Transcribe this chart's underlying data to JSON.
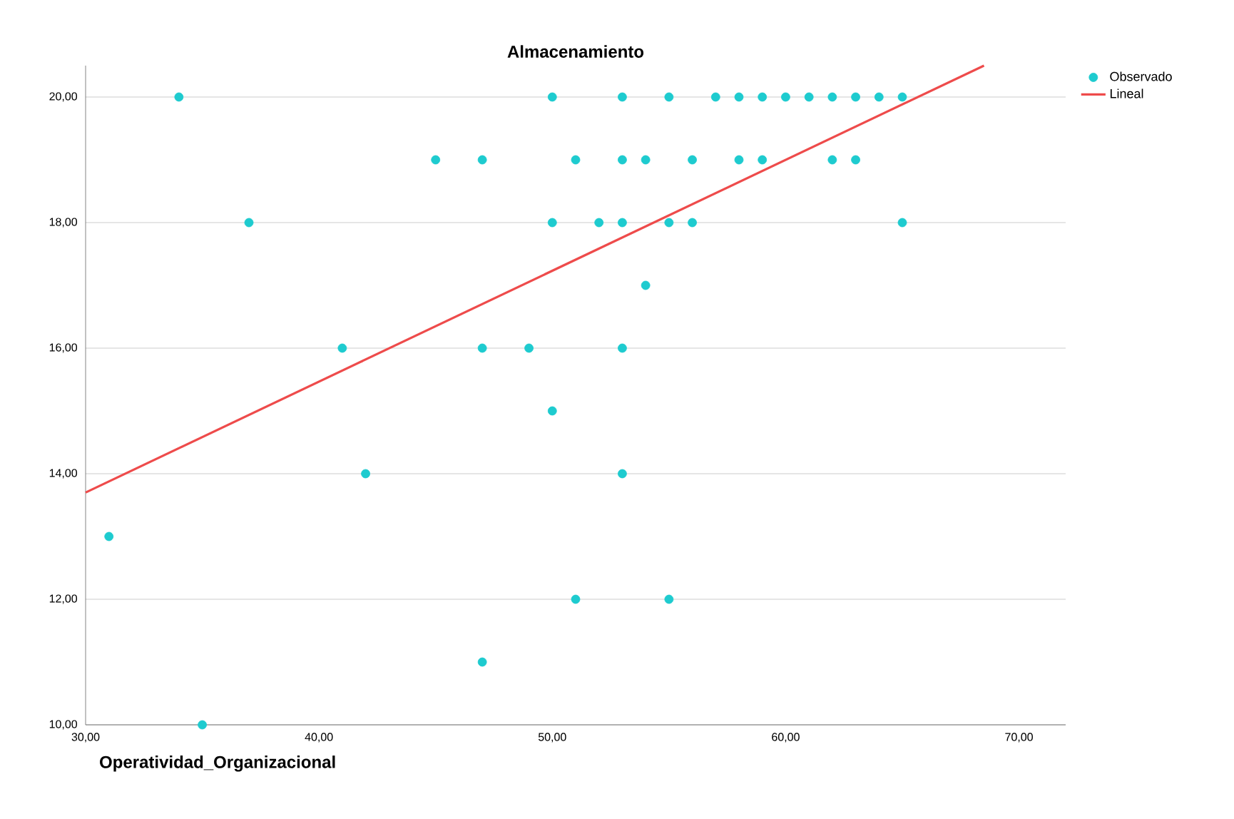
{
  "chart_data": {
    "type": "scatter",
    "title": "Almacenamiento",
    "xlabel": "Operatividad_Organizacional",
    "xlim": [
      30,
      72
    ],
    "ylim": [
      10,
      20.5
    ],
    "xticks": [
      {
        "value": 30,
        "label": "30,00"
      },
      {
        "value": 40,
        "label": "40,00"
      },
      {
        "value": 50,
        "label": "50,00"
      },
      {
        "value": 60,
        "label": "60,00"
      },
      {
        "value": 70,
        "label": "70,00"
      }
    ],
    "yticks": [
      {
        "value": 10,
        "label": "10,00"
      },
      {
        "value": 12,
        "label": "12,00"
      },
      {
        "value": 14,
        "label": "14,00"
      },
      {
        "value": 16,
        "label": "16,00"
      },
      {
        "value": 18,
        "label": "18,00"
      },
      {
        "value": 20,
        "label": "20,00"
      }
    ],
    "grid": "y",
    "legend": "top right",
    "marker": "circle",
    "series": [
      {
        "name": "Observado",
        "color": "#1ecbcf",
        "x": [
          34,
          50,
          53,
          55,
          57,
          58,
          59,
          60,
          61,
          62,
          63,
          64,
          65,
          45,
          47,
          51,
          53,
          54,
          56,
          58,
          59,
          62,
          63,
          37,
          50,
          52,
          53,
          55,
          56,
          65,
          54,
          41,
          47,
          49,
          53,
          50,
          42,
          53,
          31,
          51,
          55,
          47,
          35
        ],
        "values": [
          20,
          20,
          20,
          20,
          20,
          20,
          20,
          20,
          20,
          20,
          20,
          20,
          20,
          19,
          19,
          19,
          19,
          19,
          19,
          19,
          19,
          19,
          19,
          18,
          18,
          18,
          18,
          18,
          18,
          18,
          17,
          16,
          16,
          16,
          16,
          15,
          14,
          14,
          13,
          12,
          12,
          11,
          10
        ]
      },
      {
        "name": "Lineal",
        "type": "line",
        "color": "#ee4b4b",
        "marker": "none",
        "line_style": "solid",
        "x": [
          30,
          68.5
        ],
        "values": [
          13.7,
          20.5
        ]
      }
    ]
  }
}
